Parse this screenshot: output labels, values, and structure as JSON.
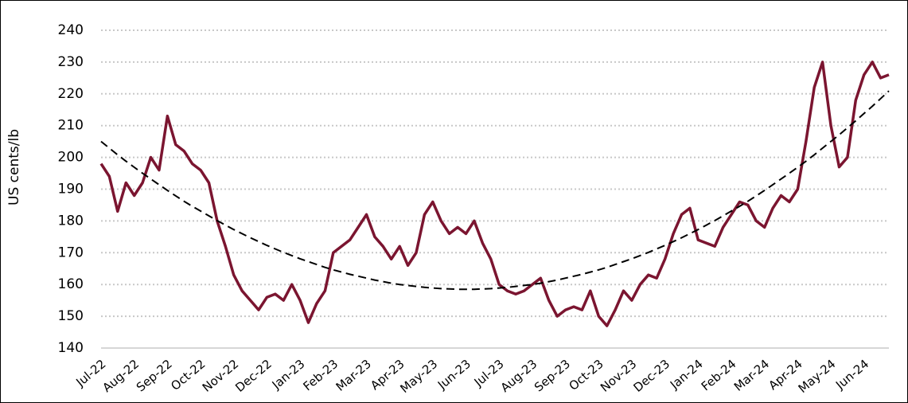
{
  "chart_data": {
    "type": "line",
    "y_label": "US cents/lb",
    "categories": [
      "Jul-22",
      null,
      null,
      null,
      "Aug-22",
      null,
      null,
      null,
      "Sep-22",
      null,
      null,
      null,
      "Oct-22",
      null,
      null,
      null,
      "Nov-22",
      null,
      null,
      null,
      "Dec-22",
      null,
      null,
      null,
      "Jan-23",
      null,
      null,
      null,
      "Feb-23",
      null,
      null,
      null,
      "Mar-23",
      null,
      null,
      null,
      "Apr-23",
      null,
      null,
      null,
      "May-23",
      null,
      null,
      null,
      "Jun-23",
      null,
      null,
      null,
      "Jul-23",
      null,
      null,
      null,
      "Aug-23",
      null,
      null,
      null,
      "Sep-23",
      null,
      null,
      null,
      "Oct-23",
      null,
      null,
      null,
      "Nov-23",
      null,
      null,
      null,
      "Dec-23",
      null,
      null,
      null,
      "Jan-24",
      null,
      null,
      null,
      "Feb-24",
      null,
      null,
      null,
      "Mar-24",
      null,
      null,
      null,
      "Apr-24",
      null,
      null,
      null,
      "May-24",
      null,
      null,
      null,
      "Jun-24",
      null,
      null,
      null
    ],
    "series": [
      {
        "color": "#7b1530",
        "dashed": false,
        "values": [
          198,
          194,
          183,
          192,
          188,
          192,
          200,
          196,
          213,
          204,
          202,
          198,
          196,
          192,
          180,
          172,
          163,
          158,
          155,
          152,
          156,
          157,
          155,
          160,
          155,
          148,
          154,
          158,
          170,
          172,
          174,
          178,
          182,
          175,
          172,
          168,
          172,
          166,
          170,
          182,
          186,
          180,
          176,
          178,
          176,
          180,
          173,
          168,
          160,
          158,
          157,
          158,
          160,
          162,
          155,
          150,
          152,
          153,
          152,
          158,
          150,
          147,
          152,
          158,
          155,
          160,
          163,
          162,
          168,
          176,
          182,
          184,
          174,
          173,
          172,
          178,
          182,
          186,
          185,
          180,
          178,
          184,
          188,
          186,
          190,
          205,
          222,
          230,
          210,
          197,
          200,
          218,
          226,
          230,
          225,
          226
        ]
      },
      {
        "color": "#000000",
        "dashed": true,
        "values": [
          205.0,
          202.9,
          200.8,
          198.8,
          196.9,
          195.0,
          193.2,
          191.4,
          189.6,
          187.9,
          186.2,
          184.6,
          183.1,
          181.6,
          180.1,
          178.7,
          177.3,
          176.0,
          174.7,
          173.5,
          172.3,
          171.2,
          170.1,
          169.1,
          168.1,
          167.2,
          166.3,
          165.4,
          164.6,
          163.9,
          163.2,
          162.6,
          162.0,
          161.4,
          160.9,
          160.4,
          160.0,
          159.7,
          159.4,
          159.1,
          158.9,
          158.7,
          158.6,
          158.5,
          158.5,
          158.5,
          158.6,
          158.7,
          158.9,
          159.1,
          159.4,
          159.7,
          160.0,
          160.4,
          160.9,
          161.4,
          162.0,
          162.6,
          163.2,
          163.9,
          164.6,
          165.4,
          166.3,
          167.2,
          168.1,
          169.1,
          170.1,
          171.2,
          172.3,
          173.5,
          174.7,
          176.0,
          177.3,
          178.7,
          180.1,
          181.6,
          183.1,
          184.6,
          186.2,
          187.9,
          189.6,
          191.4,
          193.2,
          195.0,
          196.9,
          198.8,
          200.8,
          202.9,
          205.0,
          207.1,
          209.3,
          211.5,
          213.8,
          216.1,
          218.5,
          220.9
        ]
      }
    ],
    "ylim": [
      140,
      240
    ],
    "yticks": [
      140,
      150,
      160,
      170,
      180,
      190,
      200,
      210,
      220,
      230,
      240
    ],
    "grid": true
  }
}
